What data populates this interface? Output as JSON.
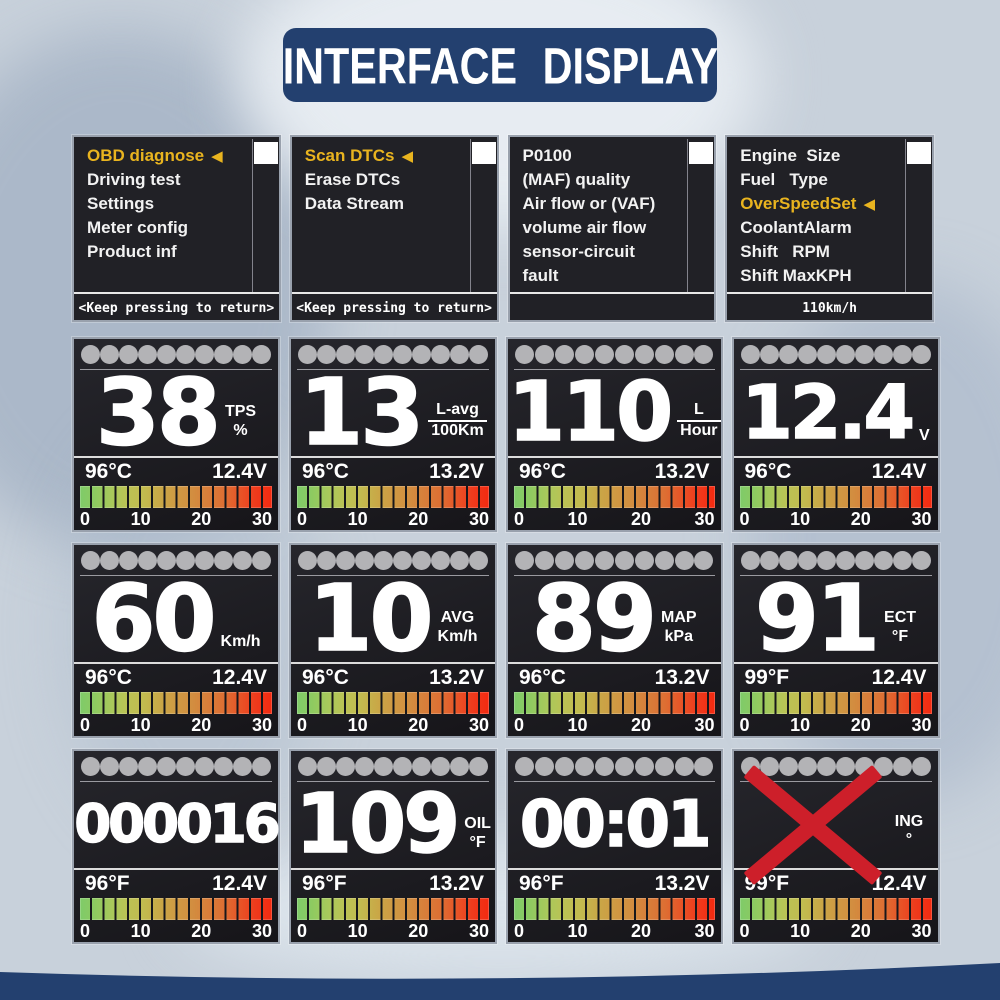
{
  "title": "INTERFACE DISPLAY",
  "colors": {
    "accent_yellow": "#e9b41f",
    "banner_navy": "#23406f",
    "error_red": "#cd1f2a",
    "bar_gradient": [
      "#7ecb69",
      "#8fca60",
      "#a9c95b",
      "#bcc254",
      "#c2bb4f",
      "#c9a847",
      "#cf9a43",
      "#d28e40",
      "#d87e3a",
      "#dd6f33",
      "#e85427",
      "#ee3a1c",
      "#f42a10"
    ]
  },
  "icons": {
    "selection_arrow": "◀"
  },
  "menu_screens": [
    {
      "items": [
        {
          "label": "OBD diagnose",
          "selected": true
        },
        {
          "label": "Driving test"
        },
        {
          "label": "Settings"
        },
        {
          "label": "Meter config"
        },
        {
          "label": "Product inf"
        }
      ],
      "footer": "<Keep pressing to return>"
    },
    {
      "items": [
        {
          "label": "Scan DTCs",
          "selected": true
        },
        {
          "label": "Erase DTCs"
        },
        {
          "label": "Data Stream"
        }
      ],
      "footer": "<Keep pressing to return>"
    },
    {
      "items": [
        {
          "label": "P0100"
        },
        {
          "label": "(MAF) quality"
        },
        {
          "label": "Air flow or (VAF)"
        },
        {
          "label": "volume air flow"
        },
        {
          "label": "sensor-circuit"
        },
        {
          "label": "fault"
        }
      ],
      "footer": ""
    },
    {
      "items": [
        {
          "label": "Engine  Size"
        },
        {
          "label": "Fuel   Type"
        },
        {
          "label": "OverSpeedSet",
          "selected": true
        },
        {
          "label": "CoolantAlarm"
        },
        {
          "label": "Shift   RPM"
        },
        {
          "label": "Shift MaxKPH"
        }
      ],
      "footer": "110km/h"
    }
  ],
  "gauge_screens": [
    {
      "value": "38",
      "unit_top": "TPS",
      "unit_bottom": "%",
      "fraction": false,
      "temp": "96°C",
      "volt": "12.4V"
    },
    {
      "value": "13",
      "unit_top": "L-avg",
      "unit_bottom": "100Km",
      "fraction": true,
      "temp": "96°C",
      "volt": "13.2V"
    },
    {
      "value": "110",
      "unit_top": "L",
      "unit_bottom": "Hour",
      "fraction": true,
      "temp": "96°C",
      "volt": "13.2V"
    },
    {
      "value": "12.4",
      "unit_top": "V",
      "temp": "96°C",
      "volt": "12.4V"
    },
    {
      "value": "60",
      "unit_top": "Km/h",
      "temp": "96°C",
      "volt": "12.4V"
    },
    {
      "value": "10",
      "unit_top": "AVG",
      "unit_bottom": "Km/h",
      "fraction": false,
      "temp": "96°C",
      "volt": "13.2V"
    },
    {
      "value": "89",
      "unit_top": "MAP",
      "unit_bottom": "kPa",
      "fraction": false,
      "temp": "96°C",
      "volt": "13.2V"
    },
    {
      "value": "91",
      "unit_top": "ECT",
      "unit_bottom": "°F",
      "fraction": false,
      "temp": "99°F",
      "volt": "12.4V"
    },
    {
      "value": "000016",
      "temp": "96°F",
      "volt": "12.4V"
    },
    {
      "value": "109",
      "unit_top": "OIL",
      "unit_bottom": "°F",
      "fraction": false,
      "temp": "96°F",
      "volt": "13.2V"
    },
    {
      "value": "00:01",
      "temp": "96°F",
      "volt": "13.2V"
    },
    {
      "error": true,
      "unit_top": "ING",
      "unit_bottom": "°",
      "fraction": false,
      "temp": "99°F",
      "volt": "12.4V"
    }
  ],
  "scale_labels": [
    "0",
    "10",
    "20",
    "30"
  ]
}
